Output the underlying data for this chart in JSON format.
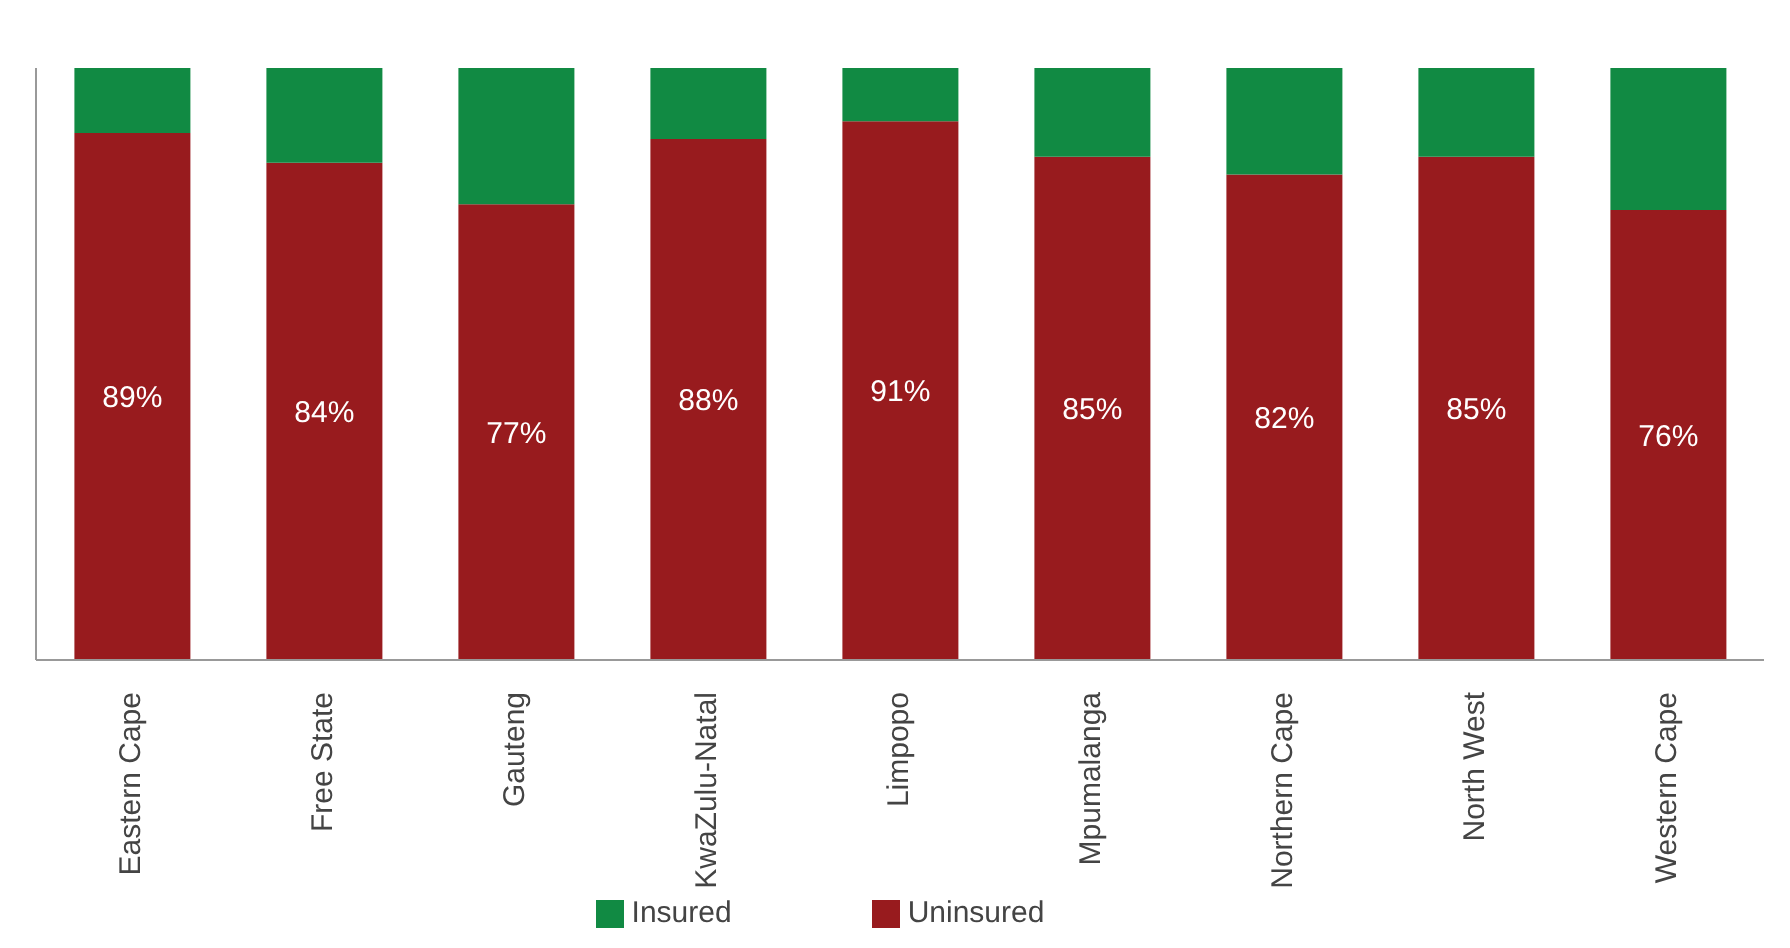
{
  "chart_data": {
    "type": "bar",
    "stacked": true,
    "categories": [
      "Eastern Cape",
      "Free State",
      "Gauteng",
      "KwaZulu-Natal",
      "Limpopo",
      "Mpumalanga",
      "Northern Cape",
      "North West",
      "Western Cape"
    ],
    "series": [
      {
        "name": "Uninsured",
        "color": "#981b1e",
        "values": [
          89,
          84,
          77,
          88,
          91,
          85,
          82,
          85,
          76
        ],
        "value_labels": [
          "89%",
          "84%",
          "77%",
          "88%",
          "91%",
          "85%",
          "82%",
          "85%",
          "76%"
        ]
      },
      {
        "name": "Insured",
        "color": "#118a43",
        "values": [
          11,
          16,
          23,
          12,
          9,
          15,
          18,
          15,
          24
        ]
      }
    ],
    "ylim": [
      0,
      100
    ],
    "tick_labels": "x",
    "legend": "bottom",
    "grid": false
  }
}
